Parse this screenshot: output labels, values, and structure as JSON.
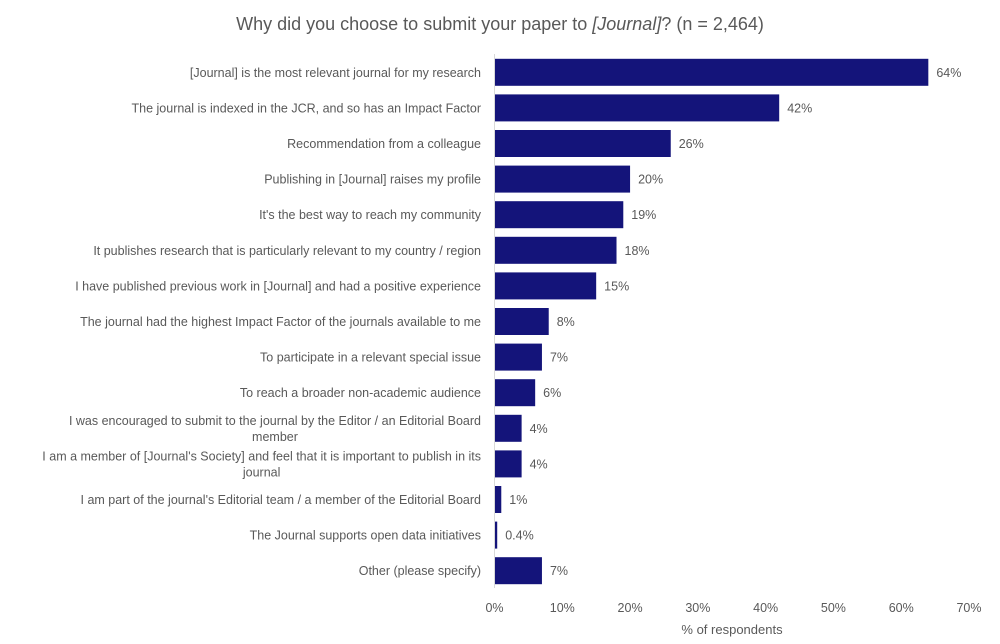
{
  "chart_data": {
    "type": "bar",
    "orientation": "horizontal",
    "title_parts": [
      "Why did you choose to submit your paper to ",
      "[Journal]",
      "? (n = 2,464)"
    ],
    "categories": [
      [
        "[Journal] is the most relevant journal for my research"
      ],
      [
        "The journal is indexed in the JCR, and so has an Impact Factor"
      ],
      [
        "Recommendation from a colleague"
      ],
      [
        "Publishing in [Journal] raises my profile"
      ],
      [
        "It's the best way to reach my community"
      ],
      [
        "It publishes research that is particularly relevant to my country / region"
      ],
      [
        "I have published previous work in [Journal] and had a positive experience"
      ],
      [
        "The journal had the highest Impact Factor of the journals available to me"
      ],
      [
        "To participate in a relevant special issue"
      ],
      [
        "To reach a broader non-academic audience"
      ],
      [
        "I was encouraged to submit to the journal by the Editor / an Editorial Board",
        "member"
      ],
      [
        "I am a member of [Journal's Society] and feel that it is important to publish in its",
        "journal"
      ],
      [
        "I am part of the journal's Editorial team / a member of the Editorial Board"
      ],
      [
        "The Journal supports open data initiatives"
      ],
      [
        "Other (please specify)"
      ]
    ],
    "values": [
      64,
      42,
      26,
      20,
      19,
      18,
      15,
      8,
      7,
      6,
      4,
      4,
      1,
      0.4,
      7
    ],
    "data_labels": [
      "64%",
      "42%",
      "26%",
      "20%",
      "19%",
      "18%",
      "15%",
      "8%",
      "7%",
      "6%",
      "4%",
      "4%",
      "1%",
      "0.4%",
      "7%"
    ],
    "xlabel": "% of respondents",
    "xlim": [
      0,
      70
    ],
    "xticks": [
      0,
      10,
      20,
      30,
      40,
      50,
      60,
      70
    ],
    "xtick_labels": [
      "0%",
      "10%",
      "20%",
      "30%",
      "40%",
      "50%",
      "60%",
      "70%"
    ],
    "grid": false,
    "legend": "none",
    "bar_color": "#14147a"
  }
}
